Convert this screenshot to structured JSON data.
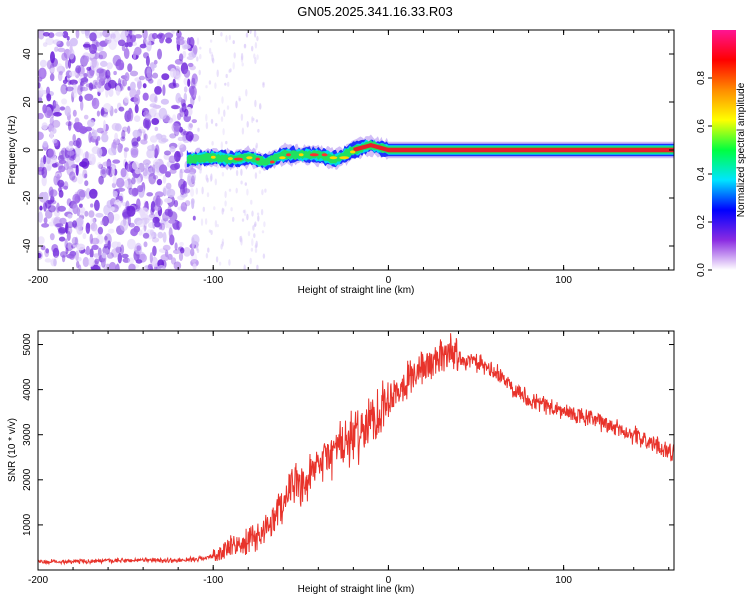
{
  "title": "GN05.2025.341.16.33.R03",
  "chart_data": [
    {
      "type": "heatmap",
      "name": "spectrogram",
      "xlabel": "Height of straight line (km)",
      "ylabel": "Frequency (Hz)",
      "xlim": [
        -200,
        163
      ],
      "ylim": [
        -50,
        50
      ],
      "xticks": [
        -200,
        -100,
        0,
        100
      ],
      "xtick_labels": [
        "-200",
        "-100",
        "0",
        "100"
      ],
      "yticks": [
        -40,
        -20,
        0,
        20,
        40
      ],
      "ytick_labels": [
        "-40",
        "-20",
        "0",
        "20",
        "40"
      ],
      "colorbar": {
        "label": "Normalized spectral amplitude",
        "range": [
          0,
          1
        ],
        "ticks": [
          0,
          0.2,
          0.4,
          0.6,
          0.8
        ],
        "tick_labels": [
          "0.0",
          "0.2",
          "0.4",
          "0.6",
          "0.8"
        ],
        "colors": [
          "#ffffff",
          "#8a2be2",
          "#0000ff",
          "#00e5ff",
          "#00ff40",
          "#ffff00",
          "#ff8c00",
          "#ff0000",
          "#ff1493"
        ]
      },
      "ridge": {
        "x": [
          -115,
          -100,
          -90,
          -80,
          -70,
          -60,
          -50,
          -40,
          -30,
          -20,
          -10,
          -5,
          0,
          50,
          100,
          163
        ],
        "y": [
          -4,
          -3,
          -4,
          -3,
          -5,
          -2,
          -2,
          -2,
          -4,
          0,
          2,
          1,
          0,
          0,
          0,
          0
        ]
      },
      "noise_region_x": [
        -200,
        -110
      ]
    },
    {
      "type": "line",
      "name": "snr",
      "xlabel": "Height of straight line (km)",
      "ylabel": "SNR (10 * v/v)",
      "xlim": [
        -200,
        163
      ],
      "ylim": [
        0,
        5300
      ],
      "xticks": [
        -200,
        -100,
        0,
        100
      ],
      "xtick_labels": [
        "-200",
        "-100",
        "0",
        "100"
      ],
      "yticks": [
        1000,
        2000,
        3000,
        4000,
        5000
      ],
      "ytick_labels": [
        "1000",
        "2000",
        "3000",
        "4000",
        "5000"
      ],
      "color": "#e8332b",
      "series": [
        {
          "name": "SNR",
          "x": [
            -200,
            -180,
            -160,
            -140,
            -120,
            -110,
            -100,
            -90,
            -80,
            -70,
            -60,
            -55,
            -50,
            -40,
            -30,
            -20,
            -10,
            0,
            10,
            20,
            30,
            35,
            40,
            50,
            60,
            70,
            80,
            100,
            120,
            140,
            150,
            163
          ],
          "y": [
            180,
            190,
            200,
            220,
            210,
            240,
            300,
            500,
            600,
            900,
            1500,
            2000,
            1700,
            2300,
            2700,
            2900,
            3300,
            3800,
            4200,
            4500,
            4700,
            4900,
            4700,
            4600,
            4400,
            4100,
            3800,
            3500,
            3300,
            3000,
            2800,
            2600
          ]
        }
      ]
    }
  ]
}
